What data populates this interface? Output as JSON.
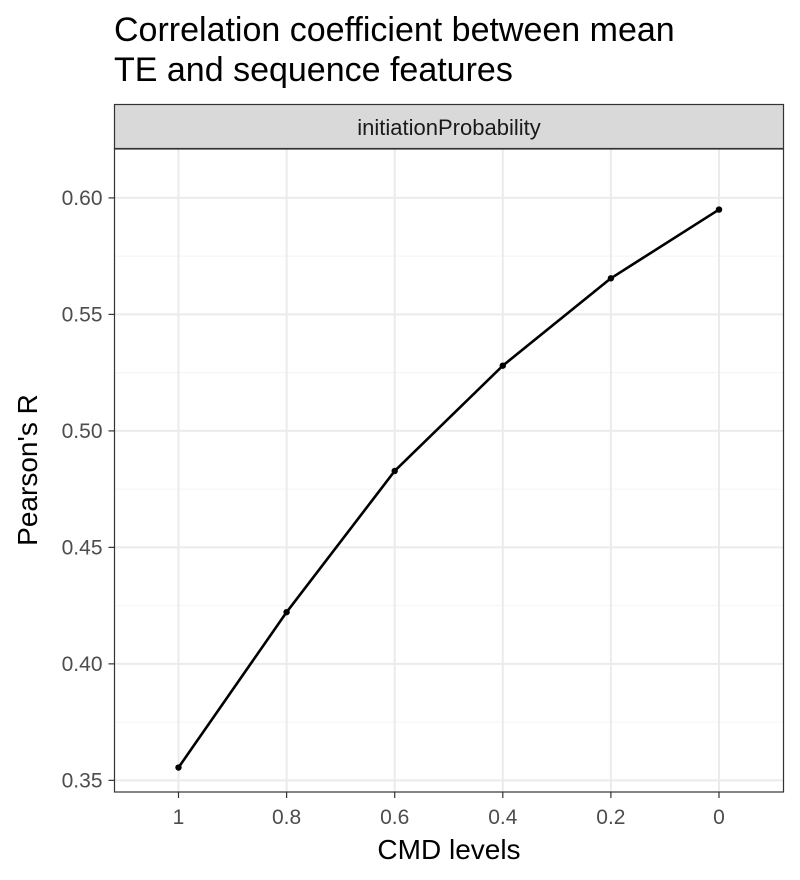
{
  "chart_data": {
    "type": "line",
    "title": [
      "Correlation coefficient between mean",
      "TE and sequence features"
    ],
    "facet_label": "initiationProbability",
    "xlabel": "CMD levels",
    "ylabel": "Pearson's R",
    "categories": [
      "1",
      "0.8",
      "0.6",
      "0.4",
      "0.2",
      "0"
    ],
    "series": [
      {
        "values": [
          0.3555,
          0.4222,
          0.4828,
          0.528,
          0.5655,
          0.595
        ]
      }
    ],
    "yticks": [
      "0.35",
      "0.40",
      "0.45",
      "0.50",
      "0.55",
      "0.60"
    ],
    "ylim": [
      0.345,
      0.621
    ],
    "grid": true,
    "theme": "bw",
    "colors": {
      "line": "#000000",
      "grid_major": "#ebebeb",
      "grid_minor": "#f5f5f5",
      "strip_fill": "#d9d9d9",
      "panel_border": "#333333"
    }
  }
}
